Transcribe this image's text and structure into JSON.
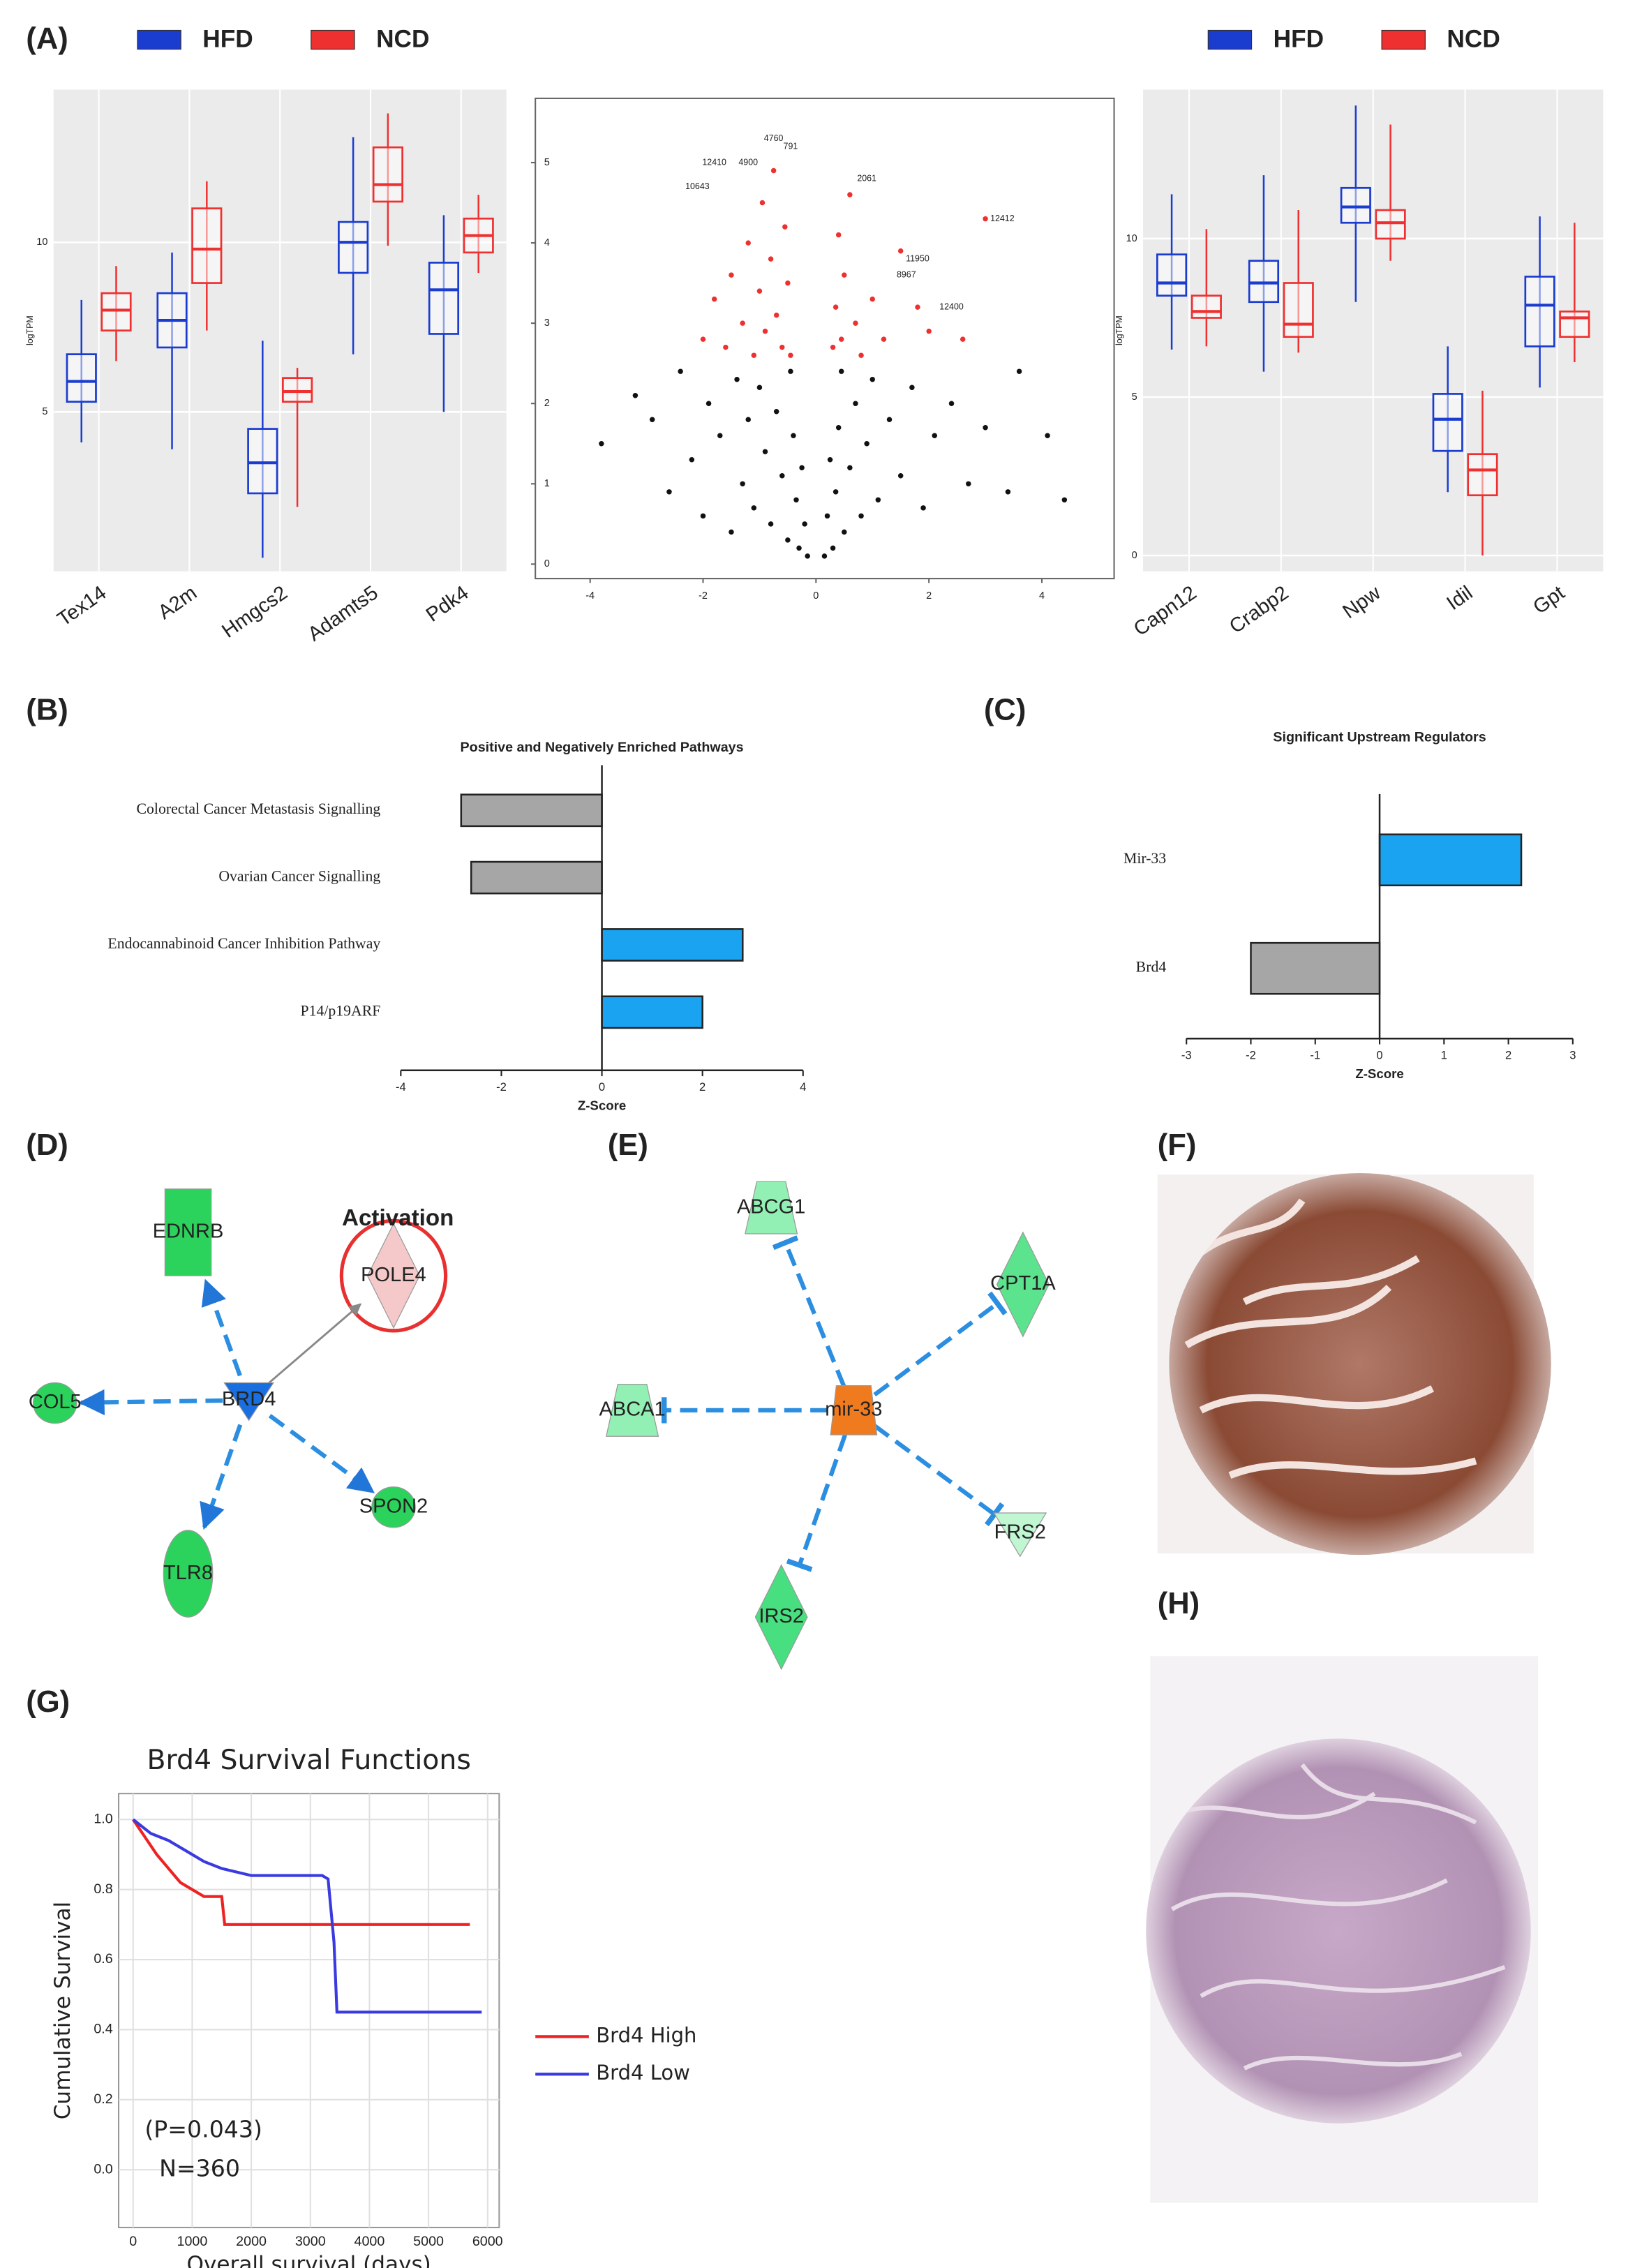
{
  "panel_labels": {
    "a": "(A)",
    "b": "(B)",
    "c": "(C)",
    "d": "(D)",
    "e": "(E)",
    "f": "(F)",
    "g": "(G)",
    "h": "(H)"
  },
  "chart_data": [
    {
      "type": "box",
      "y_label": "logTPM",
      "grid": true,
      "categories": [
        "Tex14",
        "A2m",
        "Hmgcs2",
        "Adamts5",
        "Pdk4"
      ],
      "ylim": [
        0.3,
        14.5
      ],
      "yticks": [
        5,
        10
      ],
      "series": [
        {
          "name": "HFD",
          "color": "#1a3ccf",
          "min": [
            4.1,
            3.9,
            0.7,
            6.7,
            5.0
          ],
          "q1": [
            5.3,
            6.9,
            2.6,
            9.1,
            7.3
          ],
          "median": [
            5.9,
            7.7,
            3.5,
            10.0,
            8.6
          ],
          "q3": [
            6.7,
            8.5,
            4.5,
            10.6,
            9.4
          ],
          "max": [
            8.3,
            9.7,
            7.1,
            13.1,
            10.8
          ]
        },
        {
          "name": "NCD",
          "color": "#ee3030",
          "min": [
            6.5,
            7.4,
            2.2,
            9.9,
            9.1
          ],
          "q1": [
            7.4,
            8.8,
            5.3,
            11.2,
            9.7
          ],
          "median": [
            8.0,
            9.8,
            5.6,
            11.7,
            10.2
          ],
          "q3": [
            8.5,
            11.0,
            6.0,
            12.8,
            10.7
          ],
          "max": [
            9.3,
            11.8,
            6.3,
            13.8,
            11.4
          ]
        }
      ]
    },
    {
      "type": "scatter",
      "xlim": [
        -4.97,
        5.28
      ],
      "xticks": [
        -4,
        -2,
        0,
        2,
        4
      ],
      "ylim": [
        -0.18,
        5.8
      ],
      "yticks": [
        0,
        1,
        2,
        3,
        4,
        5
      ],
      "series": [
        {
          "color": "#111111",
          "x": [
            -3.8,
            -3.2,
            -2.9,
            -2.6,
            -2.4,
            -2.2,
            -2.0,
            -1.9,
            -1.7,
            -1.5,
            -1.4,
            -1.3,
            -1.2,
            -1.1,
            -1.0,
            -0.9,
            -0.8,
            -0.7,
            -0.6,
            -0.5,
            -0.45,
            -0.4,
            -0.35,
            -0.3,
            -0.25,
            -0.2,
            -0.15,
            0.15,
            0.2,
            0.25,
            0.3,
            0.35,
            0.4,
            0.45,
            0.5,
            0.6,
            0.7,
            0.8,
            0.9,
            1.0,
            1.1,
            1.3,
            1.5,
            1.7,
            1.9,
            2.1,
            2.4,
            2.7,
            3.0,
            3.4,
            3.6,
            4.1,
            4.4
          ],
          "values": [
            1.5,
            2.1,
            1.8,
            0.9,
            2.4,
            1.3,
            0.6,
            2.0,
            1.6,
            0.4,
            2.3,
            1.0,
            1.8,
            0.7,
            2.2,
            1.4,
            0.5,
            1.9,
            1.1,
            0.3,
            2.4,
            1.6,
            0.8,
            0.2,
            1.2,
            0.5,
            0.1,
            0.1,
            0.6,
            1.3,
            0.2,
            0.9,
            1.7,
            2.4,
            0.4,
            1.2,
            2.0,
            0.6,
            1.5,
            2.3,
            0.8,
            1.8,
            1.1,
            2.2,
            0.7,
            1.6,
            2.0,
            1.0,
            1.7,
            0.9,
            2.4,
            1.6,
            0.8
          ]
        },
        {
          "color": "#ee3030",
          "x": [
            -2.0,
            -1.8,
            -1.6,
            -1.5,
            -1.3,
            -1.2,
            -1.1,
            -1.0,
            -0.95,
            -0.9,
            -0.8,
            -0.75,
            -0.7,
            -0.6,
            -0.55,
            -0.5,
            -0.45,
            0.3,
            0.35,
            0.4,
            0.45,
            0.5,
            0.6,
            0.7,
            0.8,
            1.0,
            1.2,
            1.5,
            1.8,
            2.0,
            2.6,
            3.0
          ],
          "values": [
            2.8,
            3.3,
            2.7,
            3.6,
            3.0,
            4.0,
            2.6,
            3.4,
            4.5,
            2.9,
            3.8,
            4.9,
            3.1,
            2.7,
            4.2,
            3.5,
            2.6,
            2.7,
            3.2,
            4.1,
            2.8,
            3.6,
            4.6,
            3.0,
            2.6,
            3.3,
            2.8,
            3.9,
            3.2,
            2.9,
            2.8,
            4.3
          ]
        }
      ],
      "annotations": [
        {
          "text": "4760",
          "x": -0.75,
          "y": 5.3
        },
        {
          "text": "791",
          "x": -0.45,
          "y": 5.2
        },
        {
          "text": "12410",
          "x": -1.8,
          "y": 5.0
        },
        {
          "text": "4900",
          "x": -1.2,
          "y": 5.0
        },
        {
          "text": "10643",
          "x": -2.1,
          "y": 4.7
        },
        {
          "text": "2061",
          "x": 0.9,
          "y": 4.8
        },
        {
          "text": "12412",
          "x": 3.3,
          "y": 4.3
        },
        {
          "text": "11950",
          "x": 1.8,
          "y": 3.8
        },
        {
          "text": "8967",
          "x": 1.6,
          "y": 3.6
        },
        {
          "text": "12400",
          "x": 2.4,
          "y": 3.2
        }
      ]
    },
    {
      "type": "box",
      "y_label": "logTPM",
      "grid": true,
      "categories": [
        "Capn12",
        "Crabp2",
        "Npw",
        "Idil",
        "Gpt"
      ],
      "ylim": [
        -0.5,
        14.7
      ],
      "yticks": [
        0,
        5,
        10
      ],
      "series": [
        {
          "name": "HFD",
          "color": "#1a3ccf",
          "min": [
            6.5,
            5.8,
            8.0,
            2.0,
            5.3
          ],
          "q1": [
            8.2,
            8.0,
            10.5,
            3.3,
            6.6
          ],
          "median": [
            8.6,
            8.6,
            11.0,
            4.3,
            7.9
          ],
          "q3": [
            9.5,
            9.3,
            11.6,
            5.1,
            8.8
          ],
          "max": [
            11.4,
            12.0,
            14.2,
            6.6,
            10.7
          ]
        },
        {
          "name": "NCD",
          "color": "#ee3030",
          "min": [
            6.6,
            6.4,
            9.3,
            0.0,
            6.1
          ],
          "q1": [
            7.5,
            6.9,
            10.0,
            1.9,
            6.9
          ],
          "median": [
            7.7,
            7.3,
            10.5,
            2.7,
            7.5
          ],
          "q3": [
            8.2,
            8.6,
            10.9,
            3.2,
            7.7
          ],
          "max": [
            10.3,
            10.9,
            13.6,
            5.2,
            10.5
          ]
        }
      ]
    },
    {
      "type": "hbar",
      "title": "Positive and Negatively Enriched Pathways",
      "x_label": "Z-Score",
      "categories": [
        "Colorectal Cancer Metastasis Signalling",
        "Ovarian Cancer Signalling",
        "Endocannabinoid Cancer Inhibition Pathway",
        "P14/p19ARF"
      ],
      "values": [
        -2.8,
        -2.6,
        2.8,
        2.0
      ],
      "colors": [
        "#a6a6a6",
        "#a6a6a6",
        "#1aa3f0",
        "#1aa3f0"
      ],
      "xlim": [
        -4,
        4
      ],
      "xticks": [
        -4,
        -2,
        0,
        2,
        4
      ]
    },
    {
      "type": "hbar",
      "title": "Significant Upstream Regulators",
      "x_label": "Z-Score",
      "categories": [
        "Mir-33",
        "Brd4"
      ],
      "values": [
        2.2,
        -2.0
      ],
      "colors": [
        "#1aa3f0",
        "#a6a6a6"
      ],
      "xlim": [
        -3,
        3
      ],
      "xticks": [
        -3,
        -2,
        -1,
        0,
        1,
        2,
        3
      ]
    },
    {
      "type": "line",
      "title": "Brd4 Survival Functions",
      "x_label": "Overall survival (days)",
      "y_label": "Cumulative Survival",
      "grid": true,
      "xlim": [
        -245,
        6196
      ],
      "xticks": [
        0,
        1000,
        2000,
        3000,
        4000,
        5000,
        6000
      ],
      "ylim": [
        -0.165,
        1.074
      ],
      "yticks": [
        {
          "value": 0,
          "label": "0.0"
        },
        0.2,
        0.4,
        0.6,
        0.8,
        {
          "value": 1,
          "label": "1.0"
        }
      ],
      "annotations": [
        "(P=0.043)",
        "N=360"
      ],
      "series": [
        {
          "name": "Brd4 High",
          "color": "#ee2222",
          "x": [
            0,
            200,
            400,
            600,
            800,
            1000,
            1200,
            1500,
            1550,
            3000,
            5700
          ],
          "values": [
            1.0,
            0.95,
            0.9,
            0.86,
            0.82,
            0.8,
            0.78,
            0.78,
            0.7,
            0.7,
            0.7
          ]
        },
        {
          "name": "Brd4 Low",
          "color": "#3a3ae0",
          "x": [
            0,
            300,
            600,
            900,
            1200,
            1500,
            2000,
            2500,
            3200,
            3300,
            3400,
            3450,
            5900
          ],
          "values": [
            1.0,
            0.96,
            0.94,
            0.91,
            0.88,
            0.86,
            0.84,
            0.84,
            0.84,
            0.83,
            0.65,
            0.45,
            0.45
          ]
        }
      ]
    }
  ],
  "network_d": {
    "annotation": "Activation",
    "nodes": [
      {
        "label": "BRD4"
      },
      {
        "label": "EDNRB"
      },
      {
        "label": "POLE4"
      },
      {
        "label": "COL5"
      },
      {
        "label": "SPON2"
      },
      {
        "label": "TLR8"
      }
    ]
  },
  "network_e": {
    "nodes": [
      {
        "label": "mir-33"
      },
      {
        "label": "ABCG1"
      },
      {
        "label": "CPT1A"
      },
      {
        "label": "ABCA1"
      },
      {
        "label": "FRS2"
      },
      {
        "label": "IRS2"
      }
    ]
  }
}
